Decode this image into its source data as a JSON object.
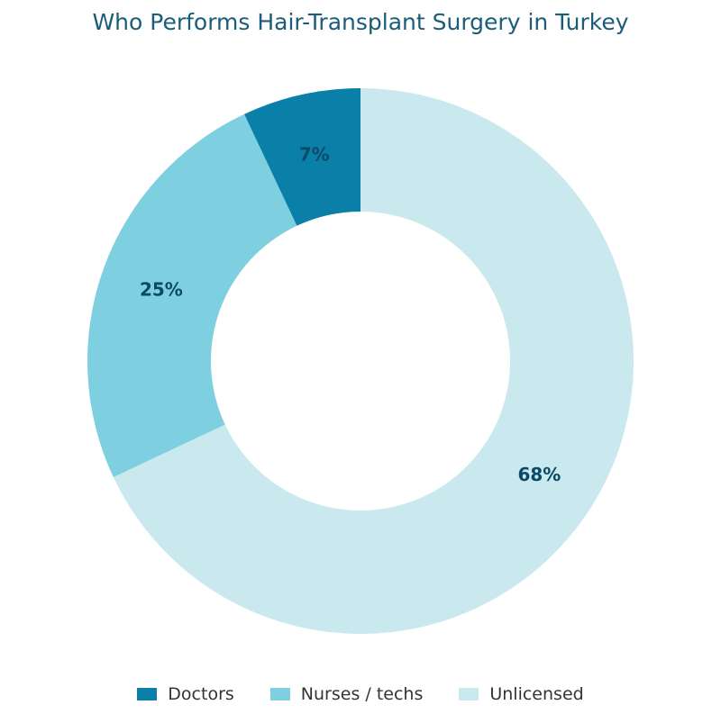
{
  "chart_data": {
    "type": "pie",
    "variant": "donut",
    "title": "Who Performs Hair-Transplant Surgery in Turkey",
    "categories": [
      "Doctors",
      "Nurses / techs",
      "Unlicensed"
    ],
    "values": [
      7,
      25,
      68
    ],
    "data_labels": [
      "7%",
      "25%",
      "68%"
    ],
    "colors": [
      "#0a7fa8",
      "#7ecfe0",
      "#c9e9ef"
    ],
    "label_color": "#0b4a66",
    "start_angle_deg": 0,
    "direction": "counterclockwise",
    "legend_position": "bottom"
  }
}
